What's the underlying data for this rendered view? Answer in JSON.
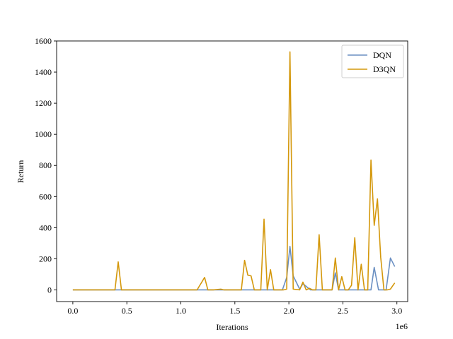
{
  "chart_data": {
    "type": "line",
    "xlabel": "Iterations",
    "ylabel": "Return",
    "x_offset_label": "1e6",
    "xlim": [
      -0.15,
      3.1
    ],
    "ylim": [
      -75,
      1600
    ],
    "x_ticks": [
      0.0,
      0.5,
      1.0,
      1.5,
      2.0,
      2.5,
      3.0
    ],
    "x_tick_labels": [
      "0.0",
      "0.5",
      "1.0",
      "1.5",
      "2.0",
      "2.5",
      "3.0"
    ],
    "y_ticks": [
      0,
      200,
      400,
      600,
      800,
      1000,
      1200,
      1400,
      1600
    ],
    "y_tick_labels": [
      "0",
      "200",
      "400",
      "600",
      "800",
      "1000",
      "1200",
      "1400",
      "1600"
    ],
    "grid": false,
    "legend_position": "top-right",
    "series": [
      {
        "name": "DQN",
        "color": "#6a8fc2",
        "x": [
          0.0,
          0.2,
          0.4,
          0.6,
          0.8,
          1.0,
          1.2,
          1.4,
          1.6,
          1.76,
          1.88,
          1.94,
          1.98,
          2.01,
          2.04,
          2.1,
          2.13,
          2.2,
          2.3,
          2.4,
          2.43,
          2.46,
          2.5,
          2.6,
          2.7,
          2.76,
          2.79,
          2.83,
          2.9,
          2.94,
          2.98
        ],
        "y": [
          0,
          0,
          0,
          0,
          0,
          0,
          0,
          0,
          0,
          0,
          0,
          0,
          80,
          280,
          90,
          5,
          40,
          0,
          0,
          0,
          110,
          0,
          0,
          0,
          0,
          0,
          145,
          0,
          0,
          205,
          150
        ]
      },
      {
        "name": "D3QN",
        "color": "#d4980c",
        "x": [
          0.0,
          0.1,
          0.2,
          0.3,
          0.39,
          0.42,
          0.45,
          0.6,
          0.8,
          1.0,
          1.15,
          1.22,
          1.25,
          1.3,
          1.37,
          1.4,
          1.5,
          1.56,
          1.59,
          1.62,
          1.65,
          1.68,
          1.74,
          1.77,
          1.8,
          1.83,
          1.86,
          1.9,
          1.95,
          1.98,
          2.01,
          2.04,
          2.1,
          2.13,
          2.16,
          2.19,
          2.22,
          2.25,
          2.28,
          2.31,
          2.34,
          2.37,
          2.4,
          2.43,
          2.46,
          2.49,
          2.52,
          2.55,
          2.58,
          2.61,
          2.64,
          2.67,
          2.7,
          2.73,
          2.76,
          2.79,
          2.82,
          2.85,
          2.88,
          2.91,
          2.94,
          2.98
        ],
        "y": [
          0,
          0,
          0,
          0,
          0,
          180,
          0,
          0,
          0,
          0,
          0,
          80,
          0,
          0,
          5,
          0,
          0,
          0,
          190,
          95,
          90,
          0,
          0,
          455,
          0,
          130,
          0,
          0,
          0,
          5,
          1530,
          5,
          0,
          50,
          0,
          10,
          0,
          0,
          355,
          0,
          0,
          0,
          0,
          205,
          0,
          85,
          0,
          0,
          30,
          335,
          0,
          165,
          0,
          0,
          835,
          415,
          585,
          210,
          0,
          0,
          5,
          45
        ]
      }
    ]
  }
}
